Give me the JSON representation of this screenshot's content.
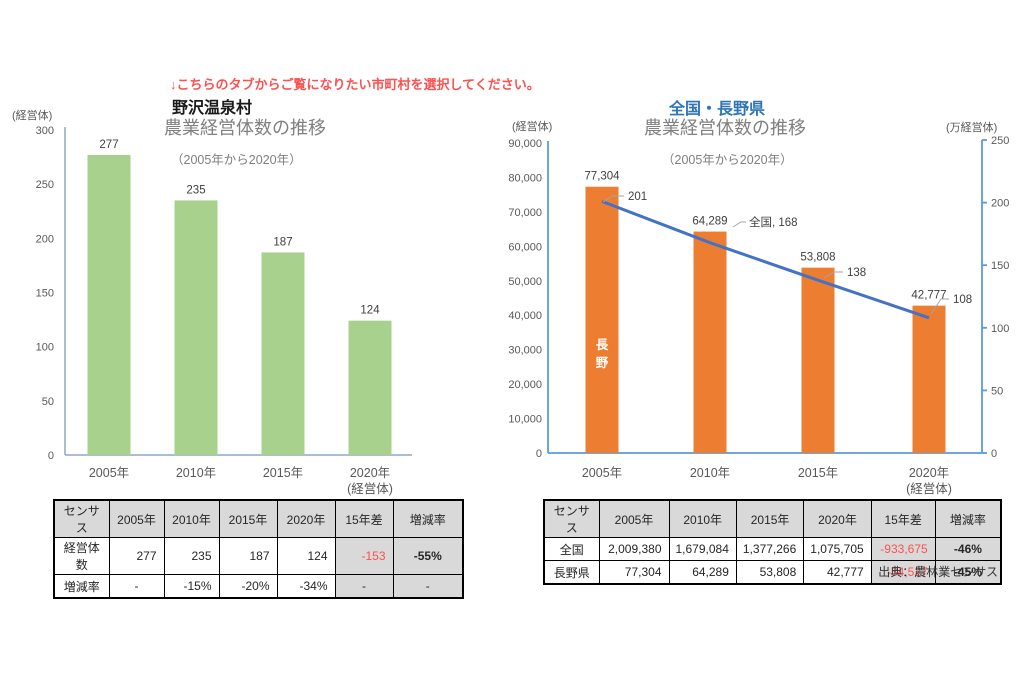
{
  "page": {
    "notice": "↓こちらのタブからご覧になりたい市町村を選択してください。",
    "source": "出典：農林業センサス"
  },
  "colors": {
    "bar_green": "#A9D18E",
    "bar_orange": "#ED7D31",
    "line_blue": "#4472C4",
    "accent_red": "#FF5050",
    "heading_blue": "#2E75B6",
    "table_gray": "#D9D9D9"
  },
  "chart_data": [
    {
      "type": "bar",
      "region": "野沢温泉村",
      "title": "農業経営体数の推移",
      "subtitle": "（2005年から2020年）",
      "categories": [
        "2005年",
        "2010年",
        "2015年",
        "2020年"
      ],
      "values": [
        277,
        235,
        187,
        124
      ],
      "value_labels": [
        "277",
        "235",
        "187",
        "124"
      ],
      "ylabel": "(経営体)",
      "x_unit_label": "(経営体)",
      "ylim": [
        0,
        300
      ],
      "yticks": [
        0,
        50,
        100,
        150,
        200,
        250,
        300
      ],
      "bar_color": "#A9D18E",
      "grid": false,
      "legend": "none"
    },
    {
      "type": "bar+line",
      "region": "全国・長野県",
      "title": "農業経営体数の推移",
      "subtitle": "（2005年から2020年）",
      "categories": [
        "2005年",
        "2010年",
        "2015年",
        "2020年"
      ],
      "series": [
        {
          "name": "長野",
          "type": "bar",
          "axis": "left",
          "values": [
            77304,
            64289,
            53808,
            42777
          ],
          "value_labels": [
            "77,304",
            "64,289",
            "53,808",
            "42,777"
          ],
          "color": "#ED7D31",
          "unit": "経営体"
        },
        {
          "name": "全国",
          "type": "line",
          "axis": "right",
          "values": [
            201,
            168,
            138,
            108
          ],
          "value_labels": [
            "201",
            "全国, 168",
            "138",
            "108"
          ],
          "color": "#4472C4",
          "unit": "万経営体"
        }
      ],
      "left_ylim": [
        0,
        90000
      ],
      "left_yticks": [
        "0",
        "10,000",
        "20,000",
        "30,000",
        "40,000",
        "50,000",
        "60,000",
        "70,000",
        "80,000",
        "90,000"
      ],
      "left_ylabel": "(経営体)",
      "right_ylim": [
        0,
        250
      ],
      "right_yticks": [
        0,
        50,
        100,
        150,
        200,
        250
      ],
      "right_ylabel": "(万経営体)",
      "x_unit_label": "(経営体)",
      "grid": false
    }
  ],
  "left_table": {
    "headers": [
      "センサス",
      "2005年",
      "2010年",
      "2015年",
      "2020年",
      "15年差",
      "増減率"
    ],
    "rows": [
      {
        "label": "経営体数",
        "cells": [
          "277",
          "235",
          "187",
          "124",
          "-153",
          "-55%"
        ]
      },
      {
        "label": "増減率",
        "cells": [
          "-",
          "-15%",
          "-20%",
          "-34%",
          "-",
          "-"
        ]
      }
    ]
  },
  "right_table": {
    "headers": [
      "センサス",
      "2005年",
      "2010年",
      "2015年",
      "2020年",
      "15年差",
      "増減率"
    ],
    "rows": [
      {
        "label": "全国",
        "cells": [
          "2,009,380",
          "1,679,084",
          "1,377,266",
          "1,075,705",
          "-933,675",
          "-46%"
        ]
      },
      {
        "label": "長野県",
        "cells": [
          "77,304",
          "64,289",
          "53,808",
          "42,777",
          "-34,527",
          "-45%"
        ]
      }
    ]
  }
}
